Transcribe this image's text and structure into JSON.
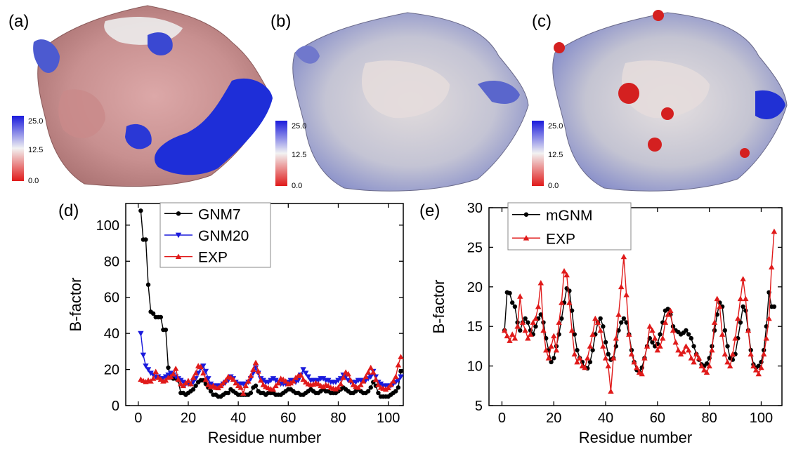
{
  "panels": {
    "a": {
      "label": "(a)",
      "colorbar": {
        "ticks": [
          "25.0",
          "12.5",
          "0.0"
        ]
      }
    },
    "b": {
      "label": "(b)",
      "colorbar": {
        "ticks": [
          "25.0",
          "12.5",
          "0.0"
        ]
      }
    },
    "c": {
      "label": "(c)",
      "colorbar": {
        "ticks": [
          "25.0",
          "12.5",
          "0.0"
        ]
      }
    }
  },
  "colors": {
    "high": "#1a1adc",
    "mid": "#f2f2f2",
    "low": "#e01a1a"
  },
  "chart_data": [
    {
      "panel": "(d)",
      "type": "line",
      "xlabel": "Residue number",
      "ylabel": "B-factor",
      "xlim": [
        -5,
        106
      ],
      "ylim": [
        0,
        112
      ],
      "xticks": [
        0,
        20,
        40,
        60,
        80,
        100
      ],
      "yticks": [
        0,
        20,
        40,
        60,
        80,
        100
      ],
      "legend_position": "top-center",
      "series": [
        {
          "name": "GNM7",
          "color": "#000000",
          "marker": "circle",
          "x": [
            1,
            2,
            3,
            4,
            5,
            6,
            7,
            8,
            9,
            10,
            11,
            12,
            13,
            14,
            15,
            16,
            17,
            18,
            19,
            20,
            21,
            22,
            23,
            24,
            25,
            26,
            27,
            28,
            29,
            30,
            31,
            32,
            33,
            34,
            35,
            36,
            37,
            38,
            39,
            40,
            41,
            42,
            43,
            44,
            45,
            46,
            47,
            48,
            49,
            50,
            51,
            52,
            53,
            54,
            55,
            56,
            57,
            58,
            59,
            60,
            61,
            62,
            63,
            64,
            65,
            66,
            67,
            68,
            69,
            70,
            71,
            72,
            73,
            74,
            75,
            76,
            77,
            78,
            79,
            80,
            81,
            82,
            83,
            84,
            85,
            86,
            87,
            88,
            89,
            90,
            91,
            92,
            93,
            94,
            95,
            96,
            97,
            98,
            99,
            100,
            101,
            102,
            103,
            104,
            105
          ],
          "y": [
            108,
            92,
            92,
            67,
            52,
            51,
            49,
            49,
            49,
            42,
            42,
            21,
            16,
            15,
            15,
            14,
            7,
            7,
            6,
            7,
            8,
            9,
            11,
            13,
            14,
            14,
            12,
            10,
            8,
            6,
            6,
            5,
            5,
            6,
            7,
            7,
            9,
            8,
            7,
            6,
            6,
            6,
            6,
            6,
            7,
            10,
            11,
            8,
            7,
            7,
            6,
            7,
            7,
            7,
            6,
            6,
            6,
            7,
            8,
            9,
            9,
            8,
            7,
            7,
            6,
            6,
            7,
            8,
            9,
            8,
            7,
            7,
            8,
            9,
            8,
            8,
            7,
            7,
            7,
            8,
            9,
            10,
            9,
            8,
            7,
            7,
            8,
            9,
            8,
            7,
            7,
            8,
            10,
            13,
            11,
            7,
            5,
            5,
            5,
            5,
            6,
            7,
            8,
            10,
            19
          ]
        },
        {
          "name": "GNM20",
          "color": "#1a1adc",
          "marker": "triangle-down",
          "x": [
            1,
            2,
            3,
            4,
            5,
            6,
            7,
            8,
            9,
            10,
            11,
            12,
            13,
            14,
            15,
            16,
            17,
            18,
            19,
            20,
            21,
            22,
            23,
            24,
            25,
            26,
            27,
            28,
            29,
            30,
            31,
            32,
            33,
            34,
            35,
            36,
            37,
            38,
            39,
            40,
            41,
            42,
            43,
            44,
            45,
            46,
            47,
            48,
            49,
            50,
            51,
            52,
            53,
            54,
            55,
            56,
            57,
            58,
            59,
            60,
            61,
            62,
            63,
            64,
            65,
            66,
            67,
            68,
            69,
            70,
            71,
            72,
            73,
            74,
            75,
            76,
            77,
            78,
            79,
            80,
            81,
            82,
            83,
            84,
            85,
            86,
            87,
            88,
            89,
            90,
            91,
            92,
            93,
            94,
            95,
            96,
            97,
            98,
            99,
            100,
            101,
            102,
            103,
            104,
            105
          ],
          "y": [
            40,
            28,
            22,
            20,
            18,
            17,
            16,
            16,
            15,
            15,
            16,
            17,
            18,
            17,
            16,
            15,
            14,
            13,
            12,
            12,
            12,
            13,
            15,
            18,
            21,
            22,
            19,
            15,
            12,
            11,
            11,
            11,
            11,
            12,
            13,
            14,
            16,
            15,
            13,
            12,
            12,
            12,
            12,
            13,
            15,
            18,
            21,
            18,
            15,
            14,
            13,
            13,
            14,
            15,
            14,
            13,
            12,
            12,
            12,
            13,
            14,
            14,
            13,
            14,
            17,
            20,
            18,
            16,
            14,
            14,
            14,
            14,
            15,
            15,
            14,
            14,
            13,
            13,
            13,
            14,
            15,
            17,
            16,
            14,
            13,
            13,
            13,
            14,
            14,
            14,
            14,
            15,
            16,
            19,
            16,
            13,
            12,
            11,
            11,
            11,
            11,
            12,
            13,
            14,
            16
          ]
        },
        {
          "name": "EXP",
          "color": "#e01a1a",
          "marker": "triangle-up",
          "x": [
            1,
            2,
            3,
            4,
            5,
            6,
            7,
            8,
            9,
            10,
            11,
            12,
            13,
            14,
            15,
            16,
            17,
            18,
            19,
            20,
            21,
            22,
            23,
            24,
            25,
            26,
            27,
            28,
            29,
            30,
            31,
            32,
            33,
            34,
            35,
            36,
            37,
            38,
            39,
            40,
            41,
            42,
            43,
            44,
            45,
            46,
            47,
            48,
            49,
            50,
            51,
            52,
            53,
            54,
            55,
            56,
            57,
            58,
            59,
            60,
            61,
            62,
            63,
            64,
            65,
            66,
            67,
            68,
            69,
            70,
            71,
            72,
            73,
            74,
            75,
            76,
            77,
            78,
            79,
            80,
            81,
            82,
            83,
            84,
            85,
            86,
            87,
            88,
            89,
            90,
            91,
            92,
            93,
            94,
            95,
            96,
            97,
            98,
            99,
            100,
            101,
            102,
            103,
            104,
            105
          ],
          "y": [
            14.5,
            13.8,
            13.2,
            14.0,
            13.5,
            15.0,
            18.8,
            15.5,
            14.5,
            13.5,
            14.0,
            15.5,
            16.0,
            17.5,
            20.5,
            14.5,
            12.0,
            11.0,
            12.5,
            13.8,
            12.0,
            15.5,
            18.0,
            22.0,
            21.5,
            18.0,
            14.5,
            11.5,
            10.5,
            11.0,
            10.0,
            9.8,
            11.0,
            12.5,
            14.0,
            16.0,
            15.5,
            14.5,
            12.5,
            11.0,
            10.0,
            6.8,
            11.0,
            13.5,
            16.5,
            20.0,
            23.8,
            19.0,
            14.0,
            11.5,
            10.5,
            9.8,
            9.2,
            9.0,
            11.0,
            12.5,
            15.0,
            14.5,
            13.5,
            12.0,
            12.5,
            13.5,
            15.5,
            16.5,
            17.0,
            14.5,
            13.0,
            12.0,
            11.5,
            11.8,
            12.5,
            12.0,
            11.0,
            10.5,
            11.5,
            11.0,
            10.0,
            9.5,
            9.2,
            10.0,
            12.0,
            15.5,
            18.5,
            17.5,
            14.0,
            11.5,
            10.5,
            10.0,
            11.5,
            13.5,
            16.0,
            18.5,
            21.0,
            18.5,
            14.5,
            11.5,
            10.0,
            9.5,
            9.0,
            9.8,
            11.5,
            13.5,
            16.0,
            22.5,
            27.0
          ]
        }
      ]
    },
    {
      "panel": "(e)",
      "type": "line",
      "xlabel": "Residue number",
      "ylabel": "B-factor",
      "xlim": [
        -5,
        108
      ],
      "ylim": [
        5,
        30
      ],
      "xticks": [
        0,
        20,
        40,
        60,
        80,
        100
      ],
      "yticks": [
        5,
        10,
        15,
        20,
        25,
        30
      ],
      "legend_position": "top-left",
      "series": [
        {
          "name": "mGNM",
          "color": "#000000",
          "marker": "circle",
          "x": [
            1,
            2,
            3,
            4,
            5,
            6,
            7,
            8,
            9,
            10,
            11,
            12,
            13,
            14,
            15,
            16,
            17,
            18,
            19,
            20,
            21,
            22,
            23,
            24,
            25,
            26,
            27,
            28,
            29,
            30,
            31,
            32,
            33,
            34,
            35,
            36,
            37,
            38,
            39,
            40,
            41,
            42,
            43,
            44,
            45,
            46,
            47,
            48,
            49,
            50,
            51,
            52,
            53,
            54,
            55,
            56,
            57,
            58,
            59,
            60,
            61,
            62,
            63,
            64,
            65,
            66,
            67,
            68,
            69,
            70,
            71,
            72,
            73,
            74,
            75,
            76,
            77,
            78,
            79,
            80,
            81,
            82,
            83,
            84,
            85,
            86,
            87,
            88,
            89,
            90,
            91,
            92,
            93,
            94,
            95,
            96,
            97,
            98,
            99,
            100,
            101,
            102,
            103,
            104,
            105
          ],
          "y": [
            14.5,
            19.3,
            19.2,
            18.0,
            17.5,
            15.5,
            14.5,
            15.5,
            16.0,
            15.5,
            14.5,
            14.0,
            15.0,
            16.0,
            16.5,
            15.5,
            13.5,
            12.0,
            10.5,
            11.0,
            12.5,
            14.0,
            16.0,
            18.0,
            19.8,
            19.5,
            17.0,
            14.0,
            12.0,
            11.0,
            10.5,
            9.8,
            9.7,
            10.5,
            12.0,
            14.0,
            15.5,
            16.0,
            15.0,
            13.0,
            11.5,
            10.8,
            11.0,
            12.5,
            14.5,
            15.5,
            16.0,
            15.5,
            14.0,
            12.0,
            10.5,
            9.5,
            9.3,
            9.8,
            11.0,
            12.5,
            13.5,
            13.0,
            12.5,
            12.8,
            14.0,
            15.5,
            17.0,
            17.2,
            16.5,
            15.0,
            14.5,
            14.3,
            14.0,
            14.2,
            14.5,
            14.0,
            13.5,
            12.5,
            11.5,
            10.8,
            10.2,
            10.0,
            10.3,
            11.0,
            12.5,
            14.5,
            16.5,
            18.0,
            17.5,
            14.5,
            12.5,
            11.0,
            10.8,
            11.5,
            13.5,
            15.5,
            17.5,
            17.0,
            14.5,
            12.0,
            10.2,
            9.8,
            10.0,
            10.5,
            12.0,
            15.0,
            19.3,
            17.5,
            17.5
          ]
        },
        {
          "name": "EXP",
          "color": "#e01a1a",
          "marker": "triangle-up",
          "x": [
            1,
            2,
            3,
            4,
            5,
            6,
            7,
            8,
            9,
            10,
            11,
            12,
            13,
            14,
            15,
            16,
            17,
            18,
            19,
            20,
            21,
            22,
            23,
            24,
            25,
            26,
            27,
            28,
            29,
            30,
            31,
            32,
            33,
            34,
            35,
            36,
            37,
            38,
            39,
            40,
            41,
            42,
            43,
            44,
            45,
            46,
            47,
            48,
            49,
            50,
            51,
            52,
            53,
            54,
            55,
            56,
            57,
            58,
            59,
            60,
            61,
            62,
            63,
            64,
            65,
            66,
            67,
            68,
            69,
            70,
            71,
            72,
            73,
            74,
            75,
            76,
            77,
            78,
            79,
            80,
            81,
            82,
            83,
            84,
            85,
            86,
            87,
            88,
            89,
            90,
            91,
            92,
            93,
            94,
            95,
            96,
            97,
            98,
            99,
            100,
            101,
            102,
            103,
            104,
            105
          ],
          "y": [
            14.5,
            13.8,
            13.2,
            14.0,
            13.5,
            15.0,
            18.8,
            15.5,
            14.5,
            13.5,
            14.0,
            15.5,
            16.0,
            17.5,
            20.5,
            14.5,
            12.0,
            11.0,
            12.5,
            13.8,
            12.0,
            15.5,
            18.0,
            22.0,
            21.5,
            18.0,
            14.5,
            11.5,
            10.5,
            11.0,
            10.0,
            9.8,
            11.0,
            12.5,
            14.0,
            16.0,
            15.5,
            14.5,
            12.5,
            11.0,
            10.0,
            6.8,
            11.0,
            13.5,
            16.5,
            20.0,
            23.8,
            19.0,
            14.0,
            11.5,
            10.5,
            9.8,
            9.2,
            9.0,
            11.0,
            12.5,
            15.0,
            14.5,
            13.5,
            12.0,
            12.5,
            13.5,
            15.5,
            16.5,
            17.0,
            14.5,
            13.0,
            12.0,
            11.5,
            11.8,
            12.5,
            12.0,
            11.0,
            10.5,
            11.5,
            11.0,
            10.0,
            9.5,
            9.2,
            10.0,
            12.0,
            15.5,
            18.5,
            17.5,
            14.0,
            11.5,
            10.5,
            10.0,
            11.5,
            13.5,
            16.0,
            18.5,
            21.0,
            18.5,
            14.5,
            11.5,
            10.0,
            9.5,
            9.0,
            9.8,
            11.5,
            13.5,
            16.0,
            22.5,
            27.0
          ]
        }
      ]
    }
  ]
}
